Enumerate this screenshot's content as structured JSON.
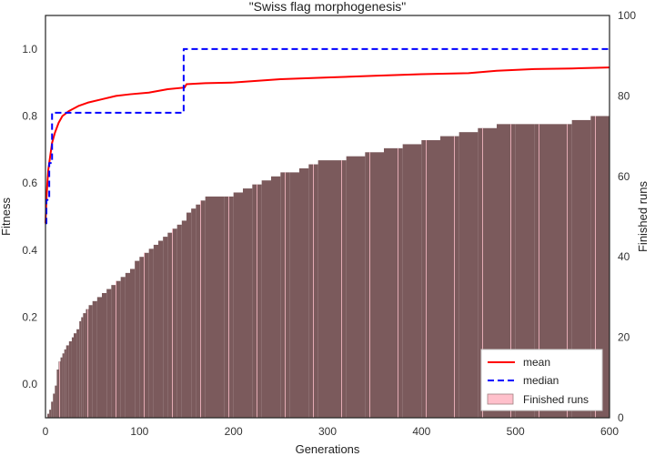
{
  "chart_data": {
    "type": "line",
    "title": "\"Swiss flag morphogenesis\"",
    "xlabel": "Generations",
    "ylabel_left": "Fitness",
    "ylabel_right": "Finished runs",
    "xlim": [
      0,
      600
    ],
    "ylim_left": [
      -0.1,
      1.1
    ],
    "ylim_right": [
      0,
      100
    ],
    "x_ticks": [
      0,
      100,
      200,
      300,
      400,
      500,
      600
    ],
    "y_left_ticks": [
      0.0,
      0.2,
      0.4,
      0.6,
      0.8,
      1.0
    ],
    "y_right_ticks": [
      0,
      20,
      40,
      60,
      80,
      100
    ],
    "grid": false,
    "legend_position": "lower-right",
    "colors": {
      "mean": "#ff0000",
      "median": "#0000ff",
      "finished_fill": "#7b5a5c",
      "finished_edge": "#ffc0cb"
    },
    "series": [
      {
        "name": "mean",
        "axis": "left",
        "style": "solid",
        "x": [
          0,
          1,
          2,
          3,
          5,
          7,
          10,
          14,
          18,
          25,
          35,
          45,
          60,
          75,
          90,
          110,
          130,
          148,
          150,
          170,
          200,
          250,
          300,
          350,
          400,
          450,
          480,
          520,
          560,
          600
        ],
        "y": [
          0.48,
          0.55,
          0.6,
          0.64,
          0.68,
          0.72,
          0.75,
          0.78,
          0.8,
          0.815,
          0.83,
          0.84,
          0.85,
          0.86,
          0.865,
          0.87,
          0.88,
          0.885,
          0.895,
          0.898,
          0.9,
          0.91,
          0.915,
          0.92,
          0.925,
          0.928,
          0.935,
          0.94,
          0.942,
          0.945
        ]
      },
      {
        "name": "median",
        "axis": "left",
        "style": "dashed",
        "x": [
          0,
          1,
          1,
          4,
          4,
          7,
          7,
          147,
          147,
          600
        ],
        "y": [
          0.48,
          0.48,
          0.55,
          0.55,
          0.66,
          0.66,
          0.81,
          0.81,
          1.0,
          1.0
        ]
      },
      {
        "name": "Finished runs",
        "axis": "right",
        "style": "step-area",
        "x": [
          0,
          2,
          4,
          6,
          8,
          10,
          12,
          14,
          16,
          18,
          20,
          22,
          25,
          28,
          30,
          33,
          36,
          38,
          40,
          43,
          46,
          50,
          55,
          60,
          65,
          70,
          75,
          80,
          85,
          90,
          95,
          100,
          105,
          110,
          115,
          120,
          125,
          130,
          135,
          140,
          145,
          150,
          155,
          160,
          165,
          170,
          180,
          190,
          200,
          210,
          220,
          230,
          240,
          250,
          260,
          270,
          280,
          290,
          300,
          320,
          340,
          360,
          380,
          400,
          420,
          440,
          460,
          480,
          500,
          520,
          540,
          560,
          580,
          600
        ],
        "y": [
          0,
          1,
          2,
          4,
          6,
          8,
          12,
          14,
          15,
          16,
          17,
          18,
          19,
          20,
          21,
          22,
          24,
          25,
          26,
          27,
          28,
          29,
          30,
          31,
          32,
          33,
          34,
          35,
          36,
          37,
          39,
          40,
          41,
          42,
          43,
          44,
          45,
          46,
          47,
          48,
          49,
          51,
          52,
          53,
          54,
          55,
          55,
          55,
          56,
          57,
          58,
          59,
          60,
          61,
          61,
          62,
          63,
          64,
          64,
          65,
          66,
          67,
          68,
          69,
          70,
          71,
          72,
          73,
          73,
          73,
          73,
          74,
          75,
          75
        ]
      }
    ],
    "legend": [
      {
        "label": "mean",
        "kind": "solid-line",
        "color": "#ff0000"
      },
      {
        "label": "median",
        "kind": "dashed-line",
        "color": "#0000ff"
      },
      {
        "label": "Finished runs",
        "kind": "patch",
        "color": "#ffc0cb"
      }
    ]
  }
}
